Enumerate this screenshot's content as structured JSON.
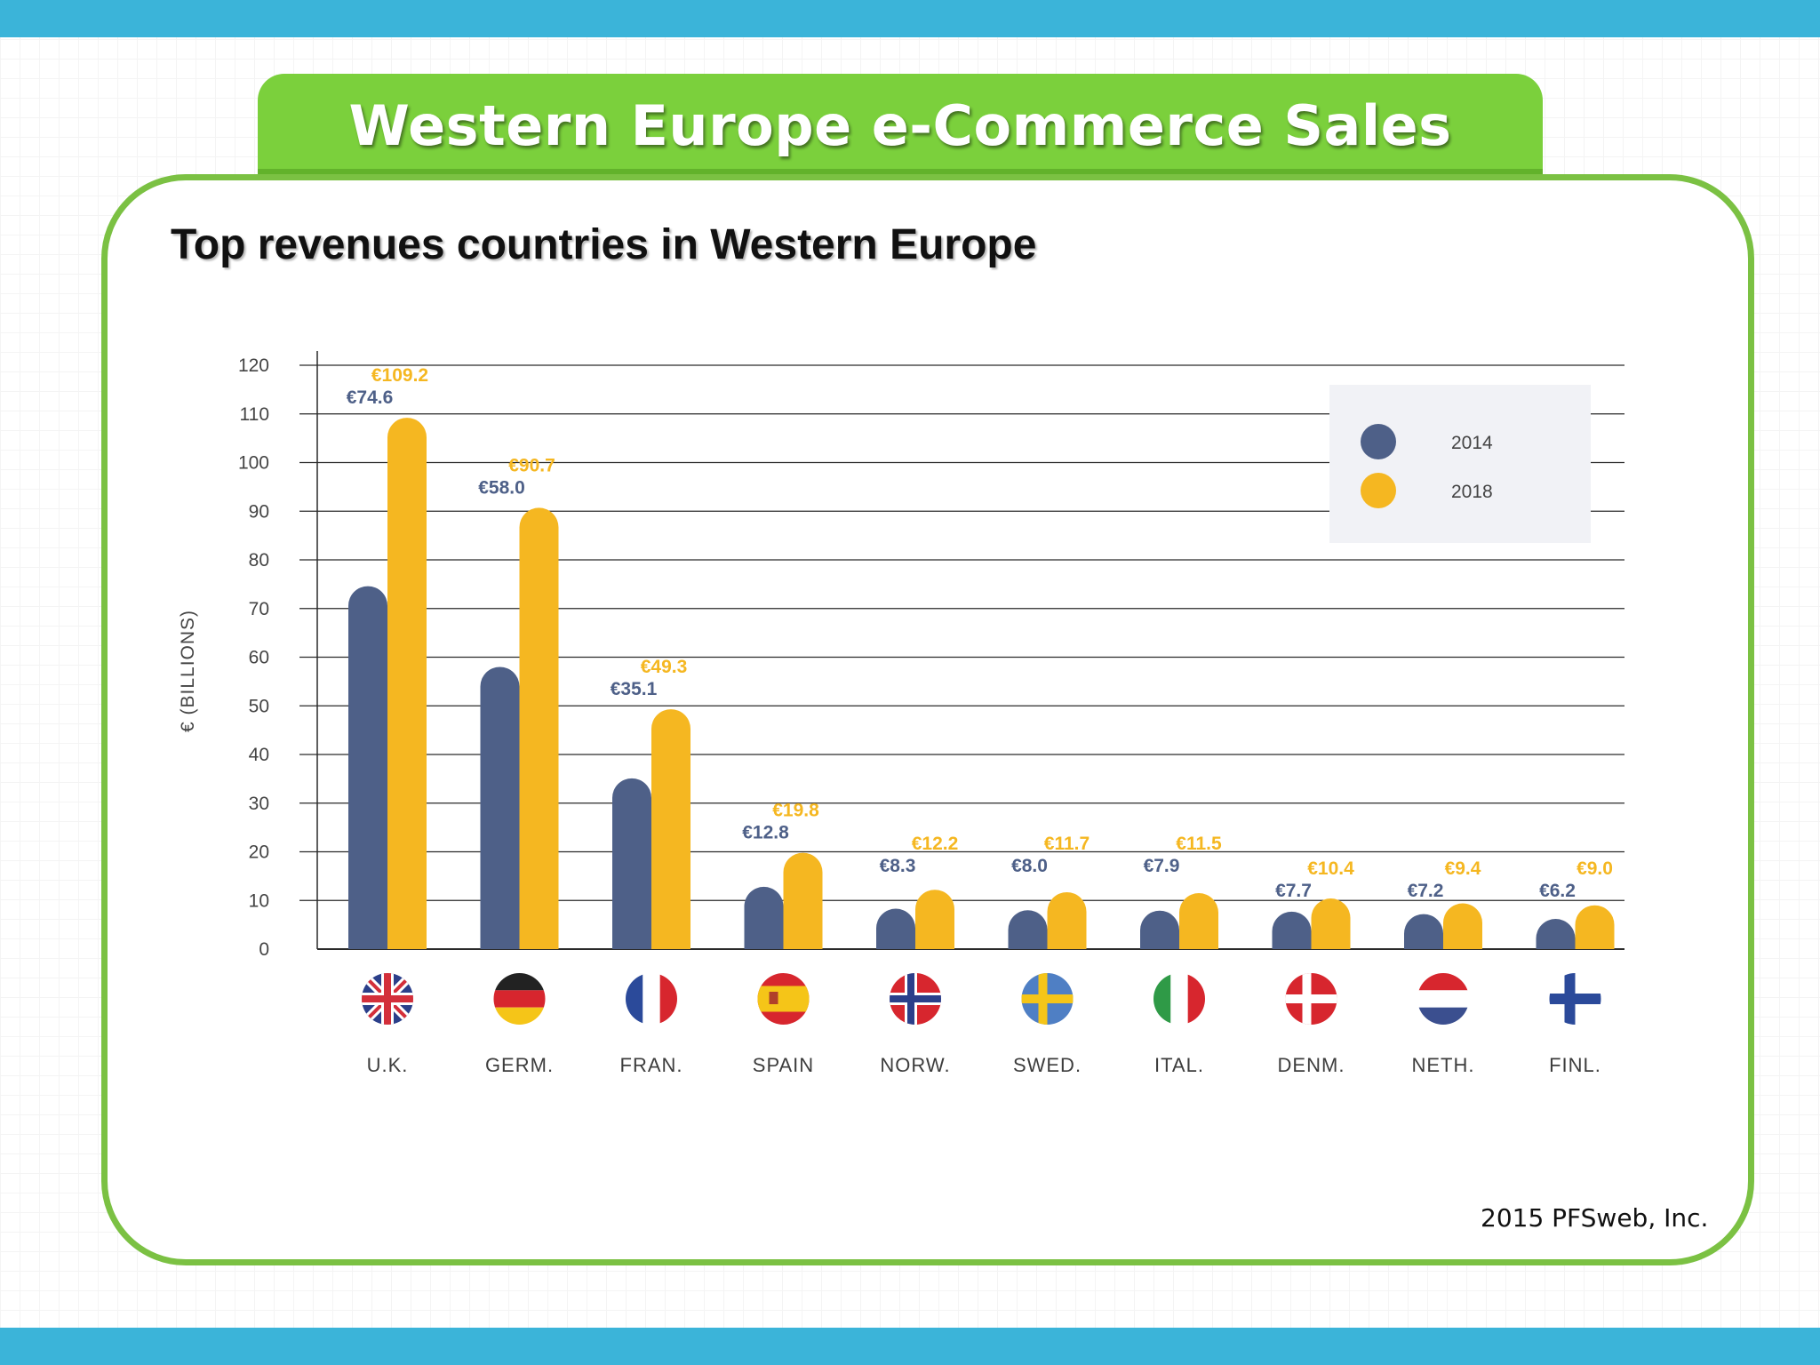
{
  "header": {
    "title": "Western Europe e-Commerce Sales"
  },
  "subtitle": "Top revenues countries in Western Europe",
  "source": "2015 PFSweb, Inc.",
  "colors": {
    "s2014": "#4e6088",
    "s2018": "#f5b721",
    "green": "#7bc143",
    "blue": "#3bb4d9"
  },
  "chart_data": {
    "type": "bar",
    "ylabel": "€ (BILLIONS)",
    "ylim": [
      0,
      120
    ],
    "yticks": [
      0,
      10,
      20,
      30,
      40,
      50,
      60,
      70,
      80,
      90,
      100,
      110,
      120
    ],
    "grid": true,
    "legend": "top-right",
    "categories": [
      "U.K.",
      "GERM.",
      "FRAN.",
      "SPAIN",
      "NORW.",
      "SWED.",
      "ITAL.",
      "DENM.",
      "NETH.",
      "FINL."
    ],
    "flags": [
      "uk-flag",
      "germany-flag",
      "france-flag",
      "spain-flag",
      "norway-flag",
      "sweden-flag",
      "italy-flag",
      "denmark-flag",
      "netherlands-flag",
      "finland-flag"
    ],
    "series": [
      {
        "name": "2014",
        "values": [
          74.6,
          58.0,
          35.1,
          12.8,
          8.3,
          8.0,
          7.9,
          7.7,
          7.2,
          6.2
        ],
        "labels": [
          "€74.6",
          "€58.0",
          "€35.1",
          "€12.8",
          "€8.3",
          "€8.0",
          "€7.9",
          "€7.7",
          "€7.2",
          "€6.2"
        ]
      },
      {
        "name": "2018",
        "values": [
          109.2,
          90.7,
          49.3,
          19.8,
          12.2,
          11.7,
          11.5,
          10.4,
          9.4,
          9.0
        ],
        "labels": [
          "€109.2",
          "€90.7",
          "€49.3",
          "€19.8",
          "€12.2",
          "€11.7",
          "€11.5",
          "€10.4",
          "€9.4",
          "€9.0"
        ]
      }
    ]
  }
}
